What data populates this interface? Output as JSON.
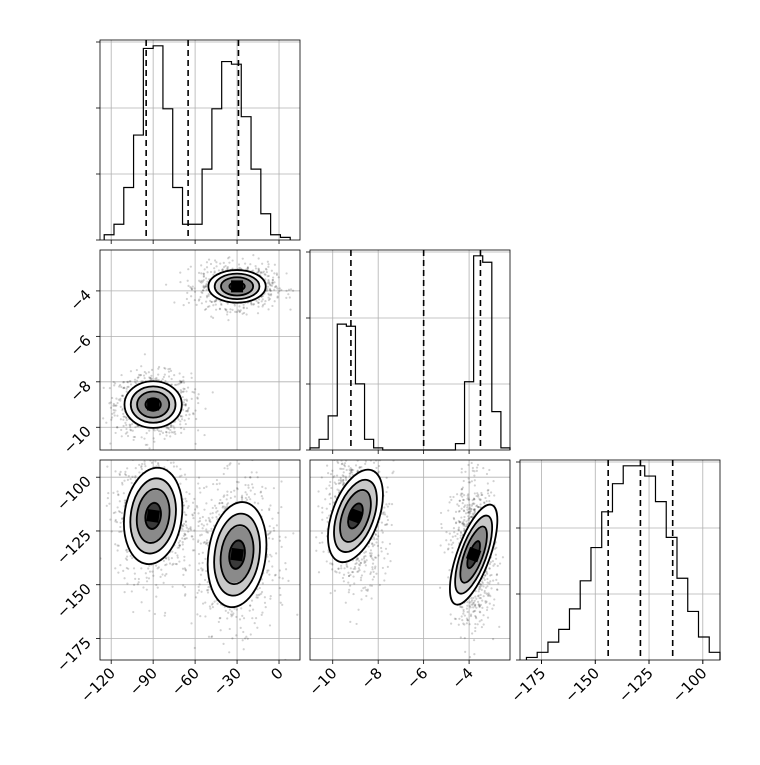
{
  "chart_data": {
    "type": "corner",
    "grid": true,
    "parameters": [
      {
        "range": [
          -128,
          15
        ],
        "ticks": [
          -120,
          -90,
          -60,
          -30,
          0
        ],
        "tick_labels": [
          "−120",
          "−90",
          "−60",
          "−30",
          "0"
        ],
        "quantiles": [
          -95,
          -65,
          -29
        ]
      },
      {
        "range": [
          -11,
          -2.2
        ],
        "ticks": [
          -10,
          -8,
          -6,
          -4
        ],
        "tick_labels": [
          "−10",
          "−8",
          "−6",
          "−4"
        ],
        "quantiles": [
          -9.2,
          -6.0,
          -3.5
        ]
      },
      {
        "range": [
          -185,
          -92
        ],
        "ticks": [
          -175,
          -150,
          -125,
          -100
        ],
        "tick_labels": [
          "−175",
          "−150",
          "−125",
          "−100"
        ],
        "quantiles": [
          -144,
          -129,
          -114
        ]
      }
    ],
    "histograms": [
      {
        "bin_edges": [
          -125,
          -118,
          -111,
          -104,
          -97,
          -90,
          -83,
          -76,
          -69,
          -62,
          -55,
          -48,
          -41,
          -34,
          -27,
          -20,
          -13,
          -6,
          1,
          8
        ],
        "counts": [
          0.2,
          0.6,
          2.0,
          4.0,
          7.3,
          7.4,
          5.0,
          2.0,
          0.6,
          0.6,
          2.7,
          5.0,
          6.8,
          6.7,
          4.7,
          2.7,
          1.0,
          0.2,
          0.1
        ]
      },
      {
        "bin_edges": [
          -11.0,
          -10.6,
          -10.2,
          -9.8,
          -9.4,
          -9.0,
          -8.6,
          -8.2,
          -7.8,
          -7.4,
          -7.0,
          -6.6,
          -6.2,
          -5.8,
          -5.4,
          -5.0,
          -4.6,
          -4.2,
          -3.8,
          -3.4,
          -3.0,
          -2.6,
          -2.2
        ],
        "counts": [
          0.1,
          0.5,
          1.6,
          5.9,
          5.8,
          3.1,
          0.5,
          0.1,
          0.0,
          0.0,
          0.0,
          0.0,
          0.0,
          0.0,
          0.0,
          0.0,
          0.3,
          3.2,
          9.1,
          8.8,
          1.8,
          0.1
        ]
      },
      {
        "bin_edges": [
          -182,
          -177,
          -172,
          -167,
          -162,
          -157,
          -152,
          -147,
          -142,
          -137,
          -132,
          -127,
          -122,
          -117,
          -112,
          -107,
          -102,
          -97,
          -92
        ],
        "counts": [
          0.1,
          0.3,
          0.7,
          1.2,
          2.0,
          3.1,
          4.4,
          5.8,
          6.9,
          7.6,
          7.6,
          7.2,
          6.2,
          4.8,
          3.2,
          1.9,
          0.9,
          0.3
        ]
      }
    ],
    "clusters": [
      {
        "mean": [
          -90,
          -9.0,
          -118
        ],
        "std": [
          10,
          0.5,
          11
        ]
      },
      {
        "mean": [
          -30,
          -3.8,
          -136
        ],
        "std": [
          10,
          0.35,
          12
        ]
      }
    ]
  }
}
